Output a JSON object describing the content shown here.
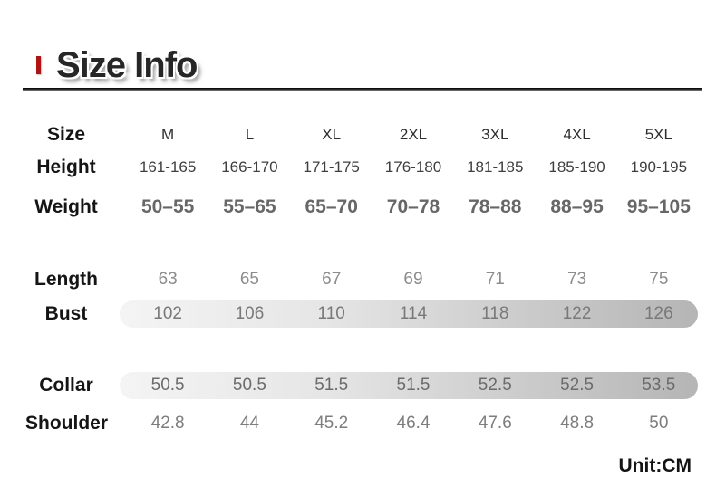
{
  "header": {
    "title": "Size Info",
    "accent_color": "#b11212"
  },
  "table": {
    "corner_label": "Size",
    "columns": [
      "M",
      "L",
      "XL",
      "2XL",
      "3XL",
      "4XL",
      "5XL"
    ],
    "rows": [
      {
        "label": "Height",
        "values": [
          "161-165",
          "166-170",
          "171-175",
          "176-180",
          "181-185",
          "185-190",
          "190-195"
        ],
        "highlighted": false
      },
      {
        "label": "Weight",
        "values": [
          "50–55",
          "55–65",
          "65–70",
          "70–78",
          "78–88",
          "88–95",
          "95–105"
        ],
        "highlighted": false
      },
      {
        "label": "Length",
        "values": [
          "63",
          "65",
          "67",
          "69",
          "71",
          "73",
          "75"
        ],
        "highlighted": false
      },
      {
        "label": "Bust",
        "values": [
          "102",
          "106",
          "110",
          "114",
          "118",
          "122",
          "126"
        ],
        "highlighted": true
      },
      {
        "label": "Collar",
        "values": [
          "50.5",
          "50.5",
          "51.5",
          "51.5",
          "52.5",
          "52.5",
          "53.5"
        ],
        "highlighted": true
      },
      {
        "label": "Shoulder",
        "values": [
          "42.8",
          "44",
          "45.2",
          "46.4",
          "47.6",
          "48.8",
          "50"
        ],
        "highlighted": false
      }
    ]
  },
  "footer": {
    "unit_label": "Unit:CM"
  },
  "colors": {
    "accent_red": "#b11212",
    "highlight_gradient_start": "#f4f4f4",
    "highlight_gradient_end": "#b5b5b5",
    "divider_dark": "#141414"
  }
}
